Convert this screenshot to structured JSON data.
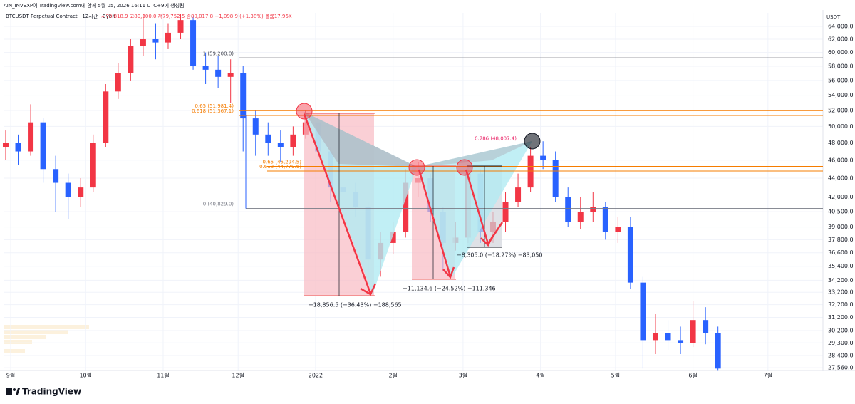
{
  "chart_data": {
    "type": "candlestick",
    "watermark": "AIN_INVEXP이 TradingView.com에 함께 5월 05, 2026 16:11 UTC+9에 생성됨",
    "title": "BTCUSDT Perpetual Contract · 12시간 · Bybit",
    "ohlc_info": "시79,818.9 고80,300.0 저79,752.5 종80,017.8 +1,098.9 (+1.38%) 볼륨17.96K",
    "currency": "USDT",
    "brand": "TradingView",
    "log_scale": true,
    "up_color": "#f23645",
    "down_color": "#2962ff",
    "xlim": [
      -2.85,
      325
    ],
    "xticks": [
      {
        "value": 0,
        "label": "9월"
      },
      {
        "value": 30,
        "label": "10월"
      },
      {
        "value": 61,
        "label": "11월"
      },
      {
        "value": 91,
        "label": "12월"
      },
      {
        "value": 122,
        "label": "2022"
      },
      {
        "value": 153,
        "label": "2월"
      },
      {
        "value": 181,
        "label": "3월"
      },
      {
        "value": 212,
        "label": "4월"
      },
      {
        "value": 242,
        "label": "5월"
      },
      {
        "value": 273,
        "label": "6월"
      },
      {
        "value": 303,
        "label": "7월"
      }
    ],
    "ylim": [
      27370,
      66170
    ],
    "yticks": [
      {
        "value": 64000,
        "label": "64,000.0"
      },
      {
        "value": 62000,
        "label": "62,000.0"
      },
      {
        "value": 60000,
        "label": "60,000.0"
      },
      {
        "value": 58000,
        "label": "58,000.0"
      },
      {
        "value": 56000,
        "label": "56,000.0"
      },
      {
        "value": 54000,
        "label": "54,000.0"
      },
      {
        "value": 52000,
        "label": "52,000.0"
      },
      {
        "value": 50000,
        "label": "50,000.0"
      },
      {
        "value": 48000,
        "label": "48,000.0"
      },
      {
        "value": 46000,
        "label": "46,000.0"
      },
      {
        "value": 44000,
        "label": "44,000.0"
      },
      {
        "value": 42000,
        "label": "42,000.0"
      },
      {
        "value": 40500,
        "label": "40,500.0"
      },
      {
        "value": 39000,
        "label": "39,000.0"
      },
      {
        "value": 37800,
        "label": "37,800.0"
      },
      {
        "value": 36600,
        "label": "36,600.0"
      },
      {
        "value": 35400,
        "label": "35,400.0"
      },
      {
        "value": 34200,
        "label": "34,200.0"
      },
      {
        "value": 33200,
        "label": "33,200.0"
      },
      {
        "value": 32200,
        "label": "32,200.0"
      },
      {
        "value": 31200,
        "label": "31,200.0"
      },
      {
        "value": 30200,
        "label": "30,200.0"
      },
      {
        "value": 29300,
        "label": "29,300.0"
      },
      {
        "value": 28400,
        "label": "28,400.0"
      },
      {
        "value": 27560,
        "label": "27,560.0"
      }
    ],
    "x": [
      -2,
      3,
      8,
      13,
      18,
      23,
      28,
      33,
      38,
      43,
      48,
      53,
      58,
      63,
      68,
      73,
      78,
      83,
      88,
      93,
      98,
      103,
      108,
      113,
      118,
      123,
      128,
      133,
      138,
      143,
      148,
      153,
      158,
      163,
      168,
      173,
      178,
      183,
      188,
      193,
      198,
      203,
      208,
      213,
      218,
      223,
      228,
      233,
      238,
      243,
      248,
      253,
      258,
      263,
      268,
      273,
      278,
      283
    ],
    "open": [
      47500,
      48000,
      47000,
      50500,
      45000,
      43500,
      42000,
      43000,
      48000,
      54500,
      57000,
      61000,
      62000,
      61500,
      63000,
      65000,
      58000,
      57500,
      56500,
      57000,
      51000,
      49000,
      48000,
      47500,
      49000,
      50500,
      47000,
      43000,
      42500,
      41000,
      36000,
      37500,
      38500,
      43500,
      44000,
      40500,
      37500,
      38000,
      44500,
      38500,
      39500,
      41500,
      43000,
      46500,
      46000,
      42000,
      39500,
      40500,
      41000,
      38500,
      39000,
      34000,
      29500,
      30000,
      29500,
      29300,
      31000,
      30000
    ],
    "high": [
      49500,
      49000,
      52800,
      51000,
      46500,
      44500,
      44000,
      49000,
      55500,
      58500,
      62000,
      66000,
      64500,
      64500,
      66000,
      65500,
      60000,
      59500,
      59000,
      58000,
      52000,
      50500,
      49500,
      50000,
      52000,
      51500,
      47500,
      44500,
      43500,
      41500,
      38500,
      39500,
      45000,
      45800,
      44500,
      41000,
      39500,
      45500,
      45000,
      40500,
      42500,
      44500,
      47500,
      48200,
      47000,
      43000,
      42000,
      42500,
      41500,
      40000,
      40000,
      34500,
      31500,
      31000,
      30500,
      32500,
      32000,
      30500
    ],
    "low": [
      46000,
      45500,
      46500,
      43500,
      40500,
      39800,
      41000,
      42500,
      47500,
      53500,
      56000,
      59500,
      59000,
      60500,
      62000,
      57500,
      55500,
      55000,
      53000,
      47000,
      46500,
      46500,
      45800,
      46500,
      48500,
      46000,
      41500,
      40500,
      40000,
      33000,
      34500,
      36500,
      38000,
      42000,
      39500,
      35000,
      36800,
      37500,
      37500,
      37500,
      38500,
      41000,
      42500,
      45000,
      41500,
      39000,
      38800,
      39500,
      37800,
      37500,
      33500,
      27500,
      28500,
      28800,
      28500,
      29000,
      29200,
      27400
    ],
    "close": [
      48000,
      47000,
      50500,
      45000,
      43500,
      42000,
      43000,
      48000,
      54500,
      57000,
      61000,
      62000,
      61500,
      63000,
      65000,
      58000,
      57500,
      56500,
      57000,
      51000,
      49000,
      48000,
      47500,
      49000,
      50500,
      47000,
      43000,
      42500,
      41000,
      36000,
      37500,
      38500,
      43500,
      44000,
      40500,
      37500,
      38000,
      44500,
      38500,
      39500,
      41500,
      43000,
      46500,
      46000,
      42000,
      39500,
      40500,
      41000,
      38500,
      39000,
      34000,
      29500,
      30000,
      29500,
      29300,
      31000,
      30000,
      27500
    ],
    "levels": [
      {
        "label": "1 (59,200.0)",
        "value": 59200,
        "color": "#434651"
      },
      {
        "label": "0.65 (51,981.4)",
        "value": 51981.4,
        "color": "#f57c00"
      },
      {
        "label": "0.618 (51,367.1)",
        "value": 51367.1,
        "color": "#f57c00"
      },
      {
        "label": "0 (40,829.0)",
        "value": 40829,
        "color": "#787b86"
      },
      {
        "label": "0.786 (48,007.4)",
        "value": 48007.4,
        "color": "#e91e63"
      },
      {
        "label": "0.65 (45,294.5)",
        "value": 45294.5,
        "color": "#f57c00"
      },
      {
        "label": "0.618 (44,779.6)",
        "value": 44779.6,
        "color": "#f57c00"
      }
    ],
    "measures": [
      "−18,856.5 (−36.43%) −188,565",
      "−11,134.6 (−24.52%) −111,346",
      "−8,305.0 (−18.27%) −83,050"
    ]
  }
}
